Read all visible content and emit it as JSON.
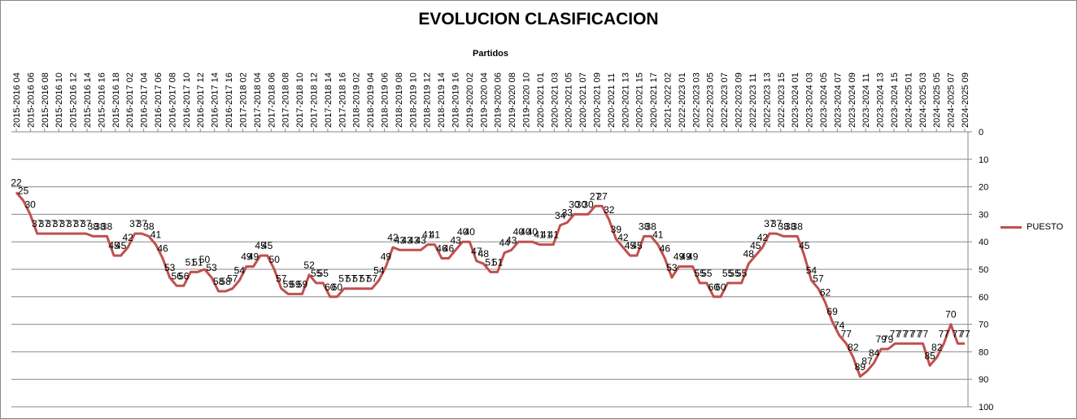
{
  "chart_data": {
    "type": "line",
    "title": "EVOLUCION CLASIFICACION",
    "xlabel": "Partidos",
    "ylabel": "",
    "x_axis_position": "top",
    "y_axis_position": "right",
    "y_reversed": true,
    "ylim": [
      0,
      100
    ],
    "yticks": [
      0,
      10,
      20,
      30,
      40,
      50,
      60,
      70,
      80,
      90,
      100
    ],
    "grid": "horizontal",
    "legend": "right",
    "x_tick_labels": [
      "2015-2016 04",
      "2015-2016 06",
      "2015-2016 08",
      "2015-2016 10",
      "2015-2016 12",
      "2015-2016 14",
      "2015-2016 16",
      "2015-2016 18",
      "2016-2017 02",
      "2016-2017 04",
      "2016-2017 06",
      "2016-2017 08",
      "2016-2017 10",
      "2016-2017 12",
      "2016-2017 14",
      "2016-2017 16",
      "2017-2018 02",
      "2017-2018 04",
      "2017-2018 06",
      "2017-2018 08",
      "2017-2018 10",
      "2017-2018 12",
      "2017-2018 14",
      "2017-2018 16",
      "2018-2019 02",
      "2018-2019 04",
      "2018-2019 06",
      "2018-2019 08",
      "2018-2019 10",
      "2018-2019 12",
      "2018-2019 14",
      "2018-2019 16",
      "2019-2020 02",
      "2019-2020 04",
      "2019-2020 06",
      "2019-2020 08",
      "2019-2020 10",
      "2020-2021 01",
      "2020-2021 03",
      "2020-2021 05",
      "2020-2021 07",
      "2020-2021 09",
      "2020-2021 11",
      "2020-2021 13",
      "2020-2021 15",
      "2020-2021 17",
      "2021-2022 02",
      "2022-2023 01",
      "2022-2023 03",
      "2022-2023 05",
      "2022-2023 07",
      "2022-2023 09",
      "2022-2023 11",
      "2022-2023 13",
      "2022-2023 15",
      "2023-2024 01",
      "2023-2024 03",
      "2023-2024 05",
      "2023-2024 07",
      "2023-2024 09",
      "2023-2024 11",
      "2023-2024 13",
      "2023-2024 15",
      "2024-2025 01",
      "2024-2025 03",
      "2024-2025 05",
      "2024-2025 07",
      "2024-2025 09"
    ],
    "series": [
      {
        "name": "PUESTO",
        "color": "#C0504D",
        "values": [
          22,
          25,
          30,
          37,
          37,
          37,
          37,
          37,
          37,
          37,
          37,
          38,
          38,
          38,
          45,
          45,
          42,
          37,
          37,
          38,
          41,
          46,
          53,
          56,
          56,
          51,
          51,
          50,
          53,
          58,
          58,
          57,
          54,
          49,
          49,
          45,
          45,
          50,
          57,
          59,
          59,
          59,
          52,
          55,
          55,
          60,
          60,
          57,
          57,
          57,
          57,
          57,
          54,
          49,
          42,
          43,
          43,
          43,
          43,
          41,
          41,
          46,
          46,
          43,
          40,
          40,
          47,
          48,
          51,
          51,
          44,
          43,
          40,
          40,
          40,
          41,
          41,
          41,
          34,
          33,
          30,
          30,
          30,
          27,
          27,
          32,
          39,
          42,
          45,
          45,
          38,
          38,
          41,
          46,
          53,
          49,
          49,
          49,
          55,
          55,
          60,
          60,
          55,
          55,
          55,
          48,
          45,
          42,
          37,
          37,
          38,
          38,
          38,
          45,
          54,
          57,
          62,
          69,
          74,
          77,
          82,
          89,
          87,
          84,
          79,
          79,
          77,
          77,
          77,
          77,
          77,
          85,
          82,
          77,
          70,
          77,
          77
        ]
      }
    ]
  }
}
